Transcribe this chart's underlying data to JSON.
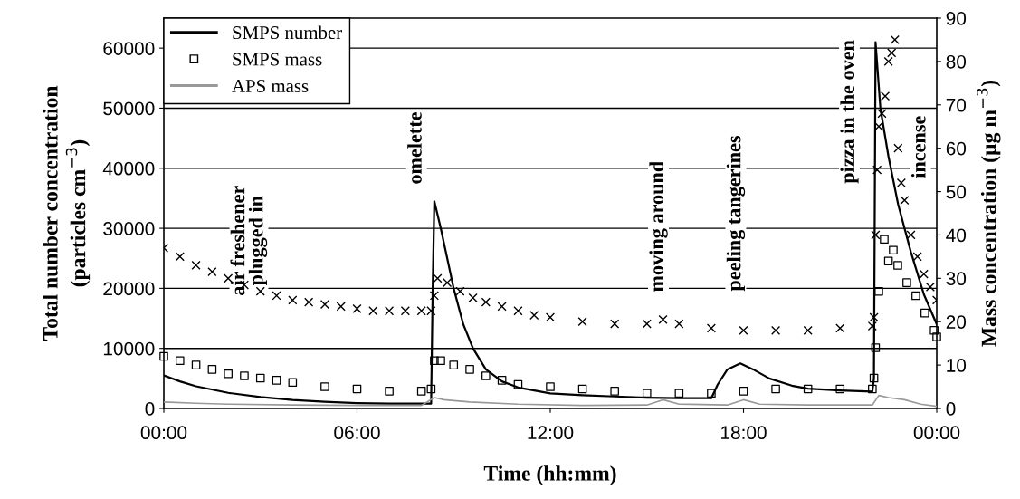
{
  "chart_data": {
    "type": "line",
    "xlabel": "Time (hh:mm)",
    "ylabel": "Total number concentration\n(particles cm$^{−3}$)",
    "y2label": "Mass concentration (µg m$^{−3}$)",
    "xlim": [
      0,
      24
    ],
    "xticks": [
      {
        "value": 0,
        "label": "00:00"
      },
      {
        "value": 6,
        "label": "06:00"
      },
      {
        "value": 12,
        "label": "12:00"
      },
      {
        "value": 18,
        "label": "18:00"
      },
      {
        "value": 24,
        "label": "00:00"
      }
    ],
    "ylim": [
      0,
      65000
    ],
    "yticks": [
      0,
      10000,
      20000,
      30000,
      40000,
      50000,
      60000
    ],
    "y2lim": [
      0,
      90
    ],
    "y2ticks": [
      0,
      10,
      20,
      30,
      40,
      50,
      60,
      70,
      80,
      90
    ],
    "grid": "y",
    "legend": "top left",
    "series": [
      {
        "name": "SMPS number",
        "marker": "none",
        "color": "#000000",
        "x": [
          0,
          0.5,
          1,
          2,
          3,
          4,
          5,
          6,
          7,
          8,
          8.3,
          8.35,
          8.4,
          8.6,
          8.8,
          9.0,
          9.3,
          9.6,
          10,
          10.5,
          11,
          12,
          13,
          14,
          15,
          16,
          17,
          17.2,
          17.5,
          17.9,
          18.3,
          18.8,
          19.5,
          20,
          21,
          22,
          22.05,
          22.1,
          22.25,
          22.5,
          22.8,
          23.2,
          23.6,
          24
        ],
        "values": [
          5500,
          4500,
          3700,
          2600,
          1900,
          1400,
          1100,
          900,
          800,
          800,
          800,
          20000,
          34500,
          30000,
          25000,
          20000,
          14000,
          10000,
          6500,
          4500,
          3500,
          2500,
          2200,
          2000,
          1800,
          1700,
          1700,
          4000,
          6500,
          7500,
          6500,
          5000,
          3800,
          3300,
          3000,
          2800,
          5000,
          61000,
          50000,
          42000,
          34000,
          26000,
          19000,
          14000
        ]
      },
      {
        "name": "SMPS mass",
        "type": "scatter",
        "marker": "square",
        "axis": "y2",
        "color": "#000000",
        "x": [
          0,
          0.5,
          1,
          1.5,
          2,
          2.5,
          3,
          3.5,
          4,
          5,
          6,
          7,
          8,
          8.3,
          8.4,
          8.6,
          9,
          9.5,
          10,
          10.5,
          11,
          12,
          13,
          14,
          15,
          16,
          17,
          18,
          19,
          20,
          21,
          22,
          22.05,
          22.1,
          22.2,
          22.37,
          22.5,
          22.65,
          22.79,
          23.07,
          23.35,
          23.63,
          23.92,
          24
        ],
        "values": [
          12,
          11,
          10,
          9,
          8,
          7.5,
          7,
          6.5,
          6,
          5,
          4.5,
          4,
          4,
          4.5,
          11,
          11,
          10,
          9,
          7.5,
          6.5,
          5.5,
          5,
          4.5,
          4,
          3.5,
          3.5,
          3.5,
          4,
          4.5,
          4.5,
          4.5,
          4.5,
          7,
          14,
          27,
          39,
          34,
          36.5,
          33,
          29,
          26,
          22,
          18,
          16.5
        ]
      },
      {
        "name": "APS mass",
        "marker": "none",
        "axis": "y2",
        "color": "#999999",
        "x": [
          0,
          1,
          2,
          4,
          6,
          8,
          8.4,
          8.7,
          9.5,
          11,
          13,
          15,
          15.5,
          16,
          17.5,
          18,
          18.5,
          20,
          22,
          22.2,
          22.5,
          23,
          23.5,
          24
        ],
        "values": [
          1.5,
          1.2,
          1,
          0.8,
          0.7,
          0.7,
          2.5,
          2,
          1.5,
          1,
          0.7,
          0.8,
          2,
          1,
          0.8,
          2,
          1,
          0.8,
          0.8,
          3,
          2.5,
          2,
          1,
          0.5
        ]
      },
      {
        "type": "scatter",
        "marker": "cross",
        "axis": "y2",
        "color": "#000000",
        "x": [
          0,
          0.5,
          1,
          1.5,
          2,
          2.5,
          3,
          3.5,
          4,
          4.5,
          5,
          5.5,
          6,
          6.5,
          7,
          7.5,
          8,
          8.3,
          8.4,
          8.5,
          8.8,
          9.2,
          9.6,
          10,
          10.5,
          11,
          11.5,
          12,
          13,
          14,
          15,
          15.5,
          16,
          17,
          18,
          19,
          20,
          21,
          22,
          22.05,
          22.1,
          22.15,
          22.2,
          22.3,
          22.4,
          22.5,
          22.6,
          22.7,
          22.8,
          22.9,
          23.0,
          23.2,
          23.4,
          23.6,
          23.8,
          24
        ],
        "values": [
          37,
          35,
          33,
          31.5,
          30,
          28.5,
          27,
          26,
          25,
          24.5,
          24,
          23.5,
          23,
          22.5,
          22.5,
          22.5,
          22.5,
          22.5,
          26,
          30,
          29,
          27,
          25.5,
          24.5,
          23.5,
          22.5,
          21.5,
          21,
          20,
          19.5,
          19.5,
          20.5,
          19.5,
          18.5,
          18,
          18,
          18,
          18.5,
          19,
          21,
          40,
          55,
          65,
          68,
          72,
          80,
          82,
          85,
          60,
          52,
          48,
          40,
          35,
          31,
          28,
          25
        ]
      }
    ],
    "annotations": [
      "air freshener\nplugged in",
      "omelette",
      "moving around",
      "peeling tangerines",
      "pizza in the oven",
      "incense"
    ]
  }
}
